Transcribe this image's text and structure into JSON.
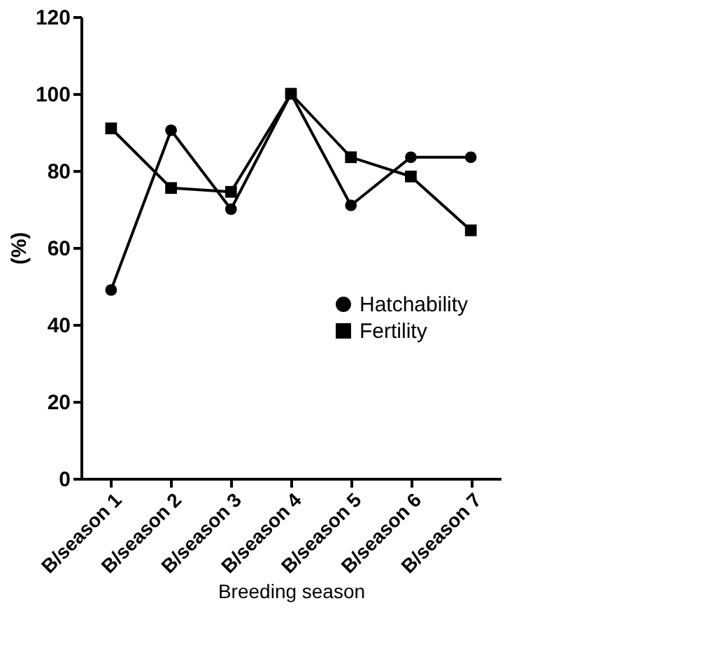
{
  "chart_data": {
    "type": "line",
    "xlabel": "Breeding season",
    "ylabel": "(%)",
    "categories": [
      "B/season 1",
      "B/season 2",
      "B/season 3",
      "B/season 4",
      "B/season 5",
      "B/season 6",
      "B/season 7"
    ],
    "series": [
      {
        "name": "Hatchability",
        "color": "#000000",
        "marker": "circle",
        "values": [
          49,
          90.5,
          70,
          100,
          71,
          83.5,
          83.5
        ]
      },
      {
        "name": "Fertility",
        "color": "#000000",
        "marker": "square",
        "values": [
          91,
          75.5,
          74.5,
          100,
          83.5,
          78.5,
          64.5
        ]
      }
    ],
    "ylim": [
      0,
      120
    ],
    "yticks": [
      0,
      20,
      40,
      60,
      80,
      100,
      120
    ],
    "grid": false,
    "legend": "bottom",
    "line_style": "solid"
  }
}
